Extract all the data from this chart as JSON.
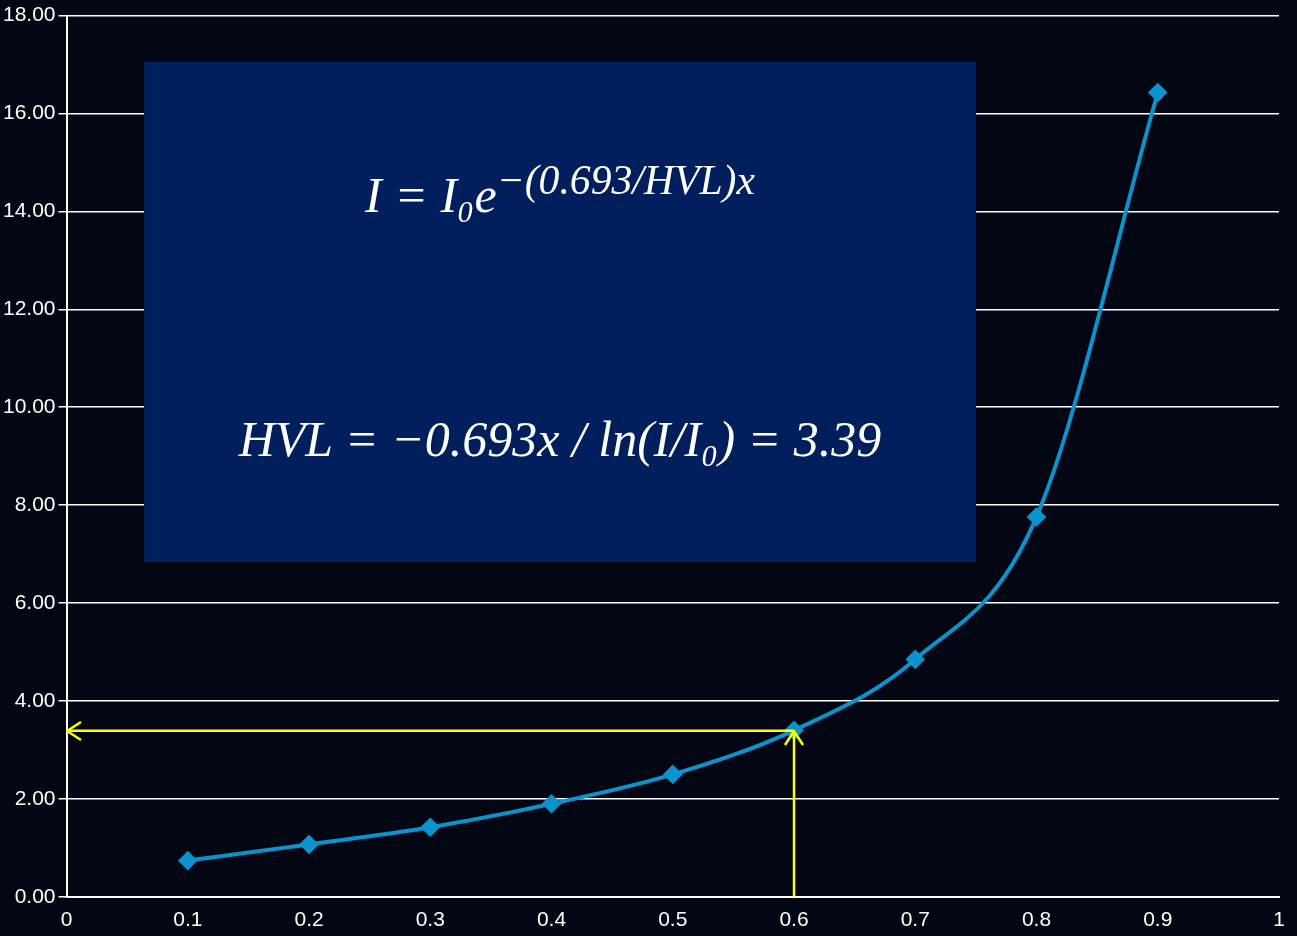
{
  "chart_data": {
    "type": "line",
    "x": [
      0.1,
      0.2,
      0.3,
      0.4,
      0.5,
      0.6,
      0.7,
      0.8,
      0.9
    ],
    "series": [
      {
        "color": "#0a93cc",
        "values": [
          0.74,
          1.07,
          1.42,
          1.9,
          2.5,
          3.4,
          4.85,
          7.76,
          16.43
        ]
      }
    ],
    "xlim": [
      0,
      1
    ],
    "xticks": [
      0,
      0.1,
      0.2,
      0.3,
      0.4,
      0.5,
      0.6,
      0.7,
      0.8,
      0.9,
      1
    ],
    "ylim": [
      0,
      18
    ],
    "yticks": [
      {
        "value": 0,
        "label": "0.00"
      },
      {
        "value": 2,
        "label": "2.00"
      },
      {
        "value": 4,
        "label": "4.00"
      },
      {
        "value": 6,
        "label": "6.00"
      },
      {
        "value": 8,
        "label": "8.00"
      },
      {
        "value": 10,
        "label": "10.00"
      },
      {
        "value": 12,
        "label": "12.00"
      },
      {
        "value": 14,
        "label": "14.00"
      },
      {
        "value": 16,
        "label": "16.00"
      },
      {
        "value": 18,
        "label": "18.00"
      }
    ],
    "grid": "y",
    "marker": "diamond",
    "line_style": "solid",
    "ref_lines": [
      {
        "axis": "x",
        "value": 0.6,
        "color": "#ffff00"
      },
      {
        "axis": "y",
        "value": 3.39,
        "color": "#ffff00"
      }
    ],
    "annotations": [
      "I = I₀e$^{−(0.693/HVL)x}$",
      "HVL = −0.693x / ln(I/I₀) = 3.39"
    ]
  }
}
